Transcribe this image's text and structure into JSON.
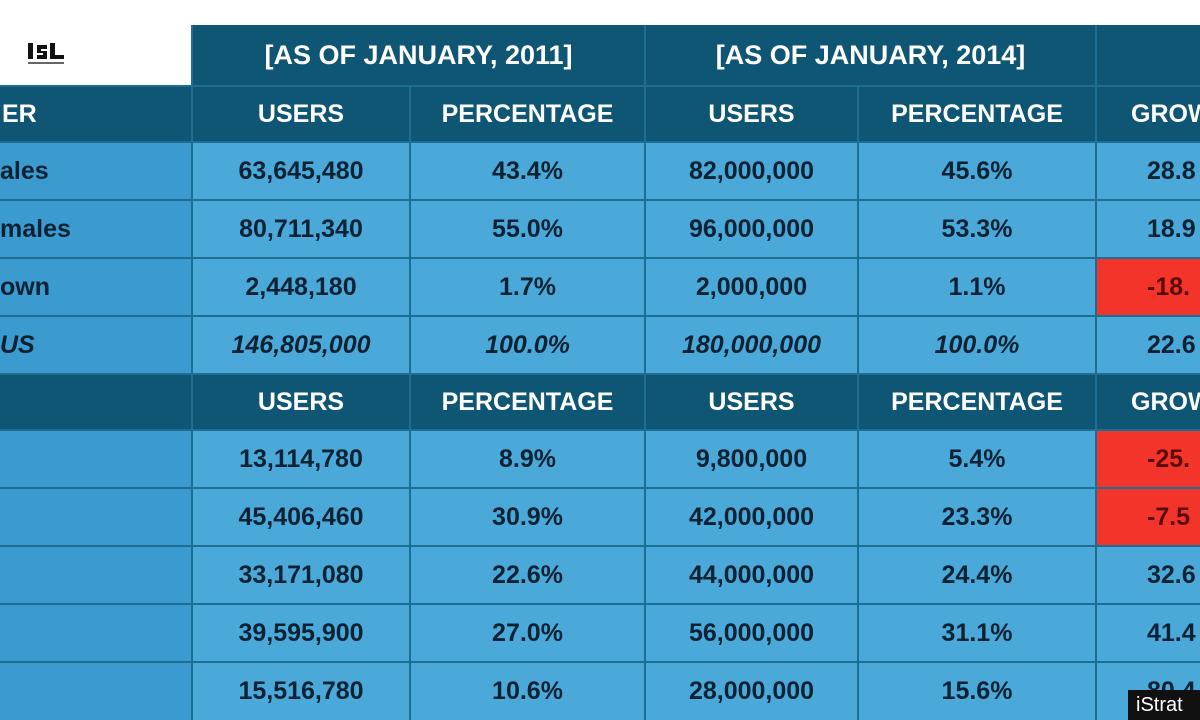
{
  "logo_text": "ISL",
  "headers": {
    "period_2011": "[AS OF JANUARY, 2011]",
    "period_2014": "[AS OF JANUARY, 2014]",
    "gender_label": "ER",
    "users": "USERS",
    "percentage": "PERCENTAGE",
    "growth": "GROW"
  },
  "gender_rows": [
    {
      "label": "ales",
      "u2011": "63,645,480",
      "p2011": "43.4%",
      "u2014": "82,000,000",
      "p2014": "45.6%",
      "growth": "28.8",
      "negative": false,
      "italic": false
    },
    {
      "label": "males",
      "u2011": "80,711,340",
      "p2011": "55.0%",
      "u2014": "96,000,000",
      "p2014": "53.3%",
      "growth": "18.9",
      "negative": false,
      "italic": false
    },
    {
      "label": "own",
      "u2011": "2,448,180",
      "p2011": "1.7%",
      "u2014": "2,000,000",
      "p2014": "1.1%",
      "growth": "-18.",
      "negative": true,
      "italic": false
    },
    {
      "label": "US",
      "u2011": "146,805,000",
      "p2011": "100.0%",
      "u2014": "180,000,000",
      "p2014": "100.0%",
      "growth": "22.6",
      "negative": false,
      "italic": true
    }
  ],
  "age_rows": [
    {
      "label": "",
      "u2011": "13,114,780",
      "p2011": "8.9%",
      "u2014": "9,800,000",
      "p2014": "5.4%",
      "growth": "-25.",
      "negative": true
    },
    {
      "label": "",
      "u2011": "45,406,460",
      "p2011": "30.9%",
      "u2014": "42,000,000",
      "p2014": "23.3%",
      "growth": "-7.5",
      "negative": true
    },
    {
      "label": "",
      "u2011": "33,171,080",
      "p2011": "22.6%",
      "u2014": "44,000,000",
      "p2014": "24.4%",
      "growth": "32.6",
      "negative": false
    },
    {
      "label": "",
      "u2011": "39,595,900",
      "p2011": "27.0%",
      "u2014": "56,000,000",
      "p2014": "31.1%",
      "growth": "41.4",
      "negative": false
    },
    {
      "label": "",
      "u2011": "15,516,780",
      "p2011": "10.6%",
      "u2014": "28,000,000",
      "p2014": "15.6%",
      "growth": "80.4",
      "negative": false
    }
  ],
  "watermark": "iStrat",
  "colors": {
    "header": "#0f5674",
    "data": "#4aa9d9",
    "label": "#3b9bce",
    "negative": "#f2342a",
    "grid": "#1c6f92"
  }
}
